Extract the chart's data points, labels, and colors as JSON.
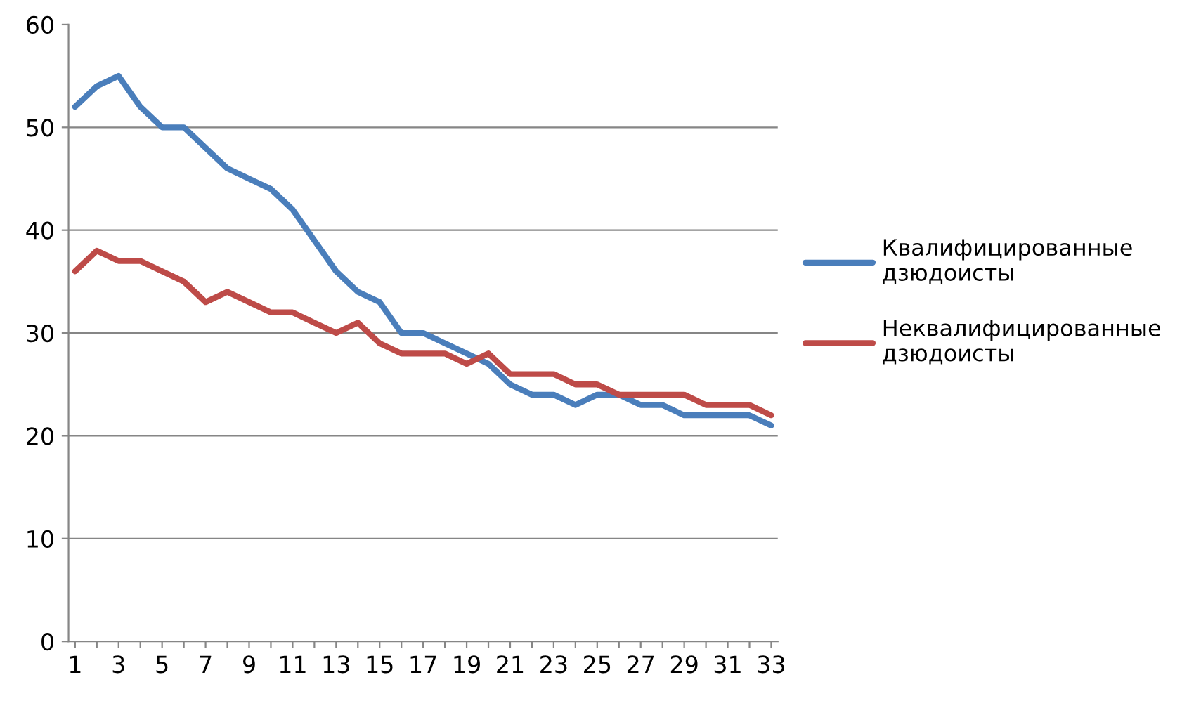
{
  "chart_data": {
    "type": "line",
    "categories": [
      "1",
      null,
      "3",
      null,
      "5",
      null,
      "7",
      null,
      "9",
      null,
      "11",
      null,
      "13",
      null,
      "15",
      null,
      "17",
      null,
      "19",
      null,
      "21",
      null,
      "23",
      null,
      "25",
      null,
      "27",
      null,
      "29",
      null,
      "31",
      null,
      "33"
    ],
    "series": [
      {
        "name": "Квалифицированные дзюдоисты",
        "color": "#4a7ebb",
        "values": [
          52,
          54,
          55,
          52,
          50,
          50,
          48,
          46,
          45,
          44,
          42,
          39,
          36,
          34,
          33,
          30,
          30,
          29,
          28,
          27,
          25,
          24,
          24,
          23,
          24,
          24,
          23,
          23,
          22,
          22,
          22,
          22,
          21
        ]
      },
      {
        "name": "Неквалифицированные дзюдоисты",
        "color": "#be4b48",
        "values": [
          36,
          38,
          37,
          37,
          36,
          35,
          33,
          34,
          33,
          32,
          32,
          31,
          30,
          31,
          29,
          28,
          28,
          28,
          27,
          28,
          26,
          26,
          26,
          25,
          25,
          24,
          24,
          24,
          24,
          23,
          23,
          23,
          22
        ]
      }
    ],
    "ylim": [
      0,
      60
    ],
    "yticks": [
      0,
      10,
      20,
      30,
      40,
      50,
      60
    ],
    "grid": "y",
    "legend": "right",
    "marker": "none",
    "line_style": "solid"
  }
}
